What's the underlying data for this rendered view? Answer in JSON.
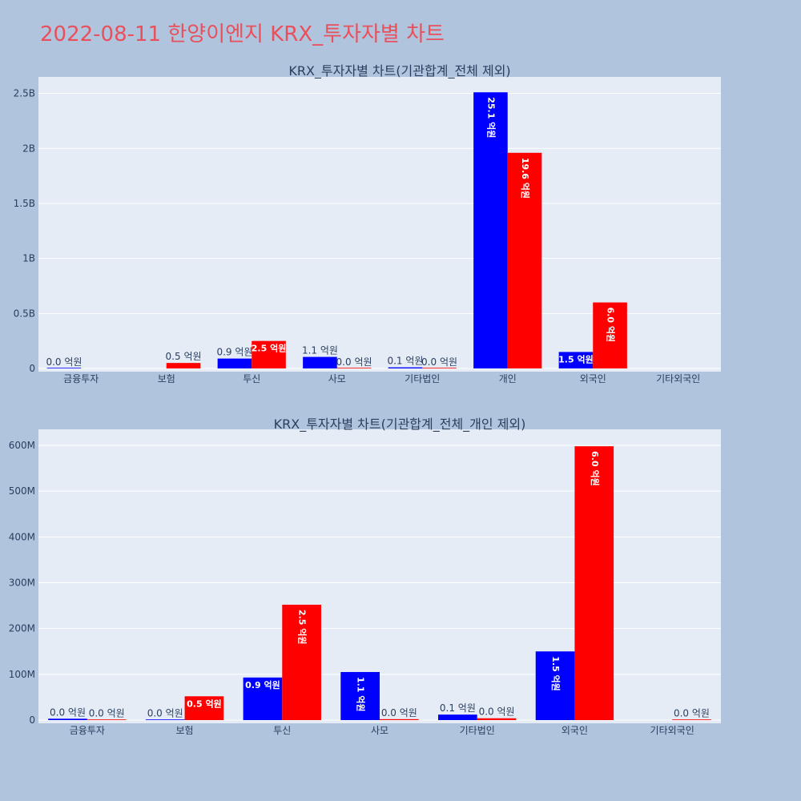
{
  "page_title": "2022-08-11 한양이엔지 KRX_투자자별 차트",
  "colors": {
    "buy": "#0000ff",
    "sell": "#ff0000",
    "title": "#e8505b",
    "plot_bg": "#e5ecf6",
    "page_bg": "#b0c4de"
  },
  "chart_data": [
    {
      "type": "bar",
      "title": "KRX_투자자별 차트(기관합계_전체 제외)",
      "categories": [
        "금융투자",
        "보험",
        "투신",
        "사모",
        "기타법인",
        "개인",
        "외국인",
        "기타외국인"
      ],
      "ylim": [
        0,
        2650000000
      ],
      "yticks": [
        0,
        500000000,
        1000000000,
        1500000000,
        2000000000,
        2500000000
      ],
      "yticklabels": [
        "0",
        "0.5B",
        "1B",
        "1.5B",
        "2B",
        "2.5B"
      ],
      "grid": true,
      "series": [
        {
          "color": "#0000ff",
          "values": [
            1000000,
            null,
            90000000,
            105000000,
            10000000,
            2510000000,
            150000000,
            null
          ],
          "labels": [
            "0.0 억원",
            "",
            "0.9 억원",
            "1.1 억원",
            "0.1 억원",
            "25.1 억원",
            "1.5 억원",
            ""
          ]
        },
        {
          "color": "#ff0000",
          "values": [
            null,
            50000000,
            250000000,
            1000000,
            1000000,
            1960000000,
            600000000,
            null
          ],
          "labels": [
            "",
            "0.5 억원",
            "2.5 억원",
            "0.0 억원",
            "0.0 억원",
            "19.6 억원",
            "6.0 억원",
            ""
          ]
        }
      ],
      "extra_labels": [
        "0.0 억원"
      ]
    },
    {
      "type": "bar",
      "title": "KRX_투자자별 차트(기관합계_전체_개인 제외)",
      "categories": [
        "금융투자",
        "보험",
        "투신",
        "사모",
        "기타법인",
        "외국인",
        "기타외국인"
      ],
      "ylim": [
        0,
        635000000
      ],
      "yticks": [
        0,
        100000000,
        200000000,
        300000000,
        400000000,
        500000000,
        600000000
      ],
      "yticklabels": [
        "0",
        "100M",
        "200M",
        "300M",
        "400M",
        "500M",
        "600M"
      ],
      "grid": true,
      "series": [
        {
          "color": "#0000ff",
          "values": [
            3000000,
            1000000,
            93000000,
            105000000,
            12000000,
            150000000,
            null
          ],
          "labels": [
            "0.0 억원",
            "0.0 억원",
            "0.9 억원",
            "1.1 억원",
            "0.1 억원",
            "1.5 억원",
            ""
          ]
        },
        {
          "color": "#ff0000",
          "values": [
            1000000,
            52000000,
            252000000,
            2000000,
            4000000,
            598000000,
            1000000
          ],
          "labels": [
            "0.0 억원",
            "0.5 억원",
            "2.5 억원",
            "0.0 억원",
            "0.0 억원",
            "6.0 억원",
            "0.0 억원"
          ]
        }
      ]
    }
  ]
}
